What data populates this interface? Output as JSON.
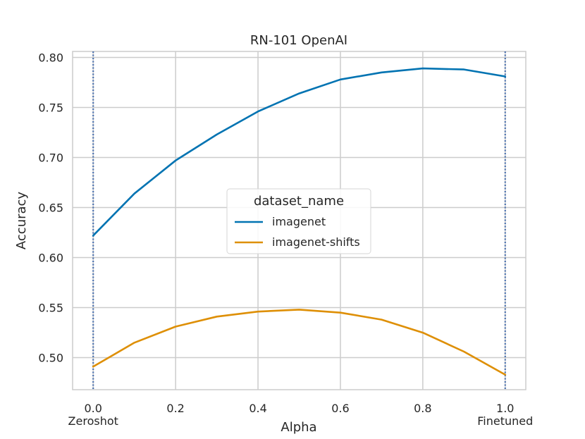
{
  "chart_data": {
    "type": "line",
    "title": "RN-101 OpenAI",
    "xlabel": "Alpha",
    "ylabel": "Accuracy",
    "x": [
      0.0,
      0.1,
      0.2,
      0.3,
      0.4,
      0.5,
      0.6,
      0.7,
      0.8,
      0.9,
      1.0
    ],
    "xlim": [
      -0.05,
      1.05
    ],
    "ylim": [
      0.468,
      0.806
    ],
    "x_ticks": [
      0.0,
      0.2,
      0.4,
      0.6,
      0.8,
      1.0
    ],
    "x_tick_labels": [
      "0.0",
      "0.2",
      "0.4",
      "0.6",
      "0.8",
      "1.0"
    ],
    "y_ticks": [
      0.5,
      0.55,
      0.6,
      0.65,
      0.7,
      0.75,
      0.8
    ],
    "y_tick_labels": [
      "0.50",
      "0.55",
      "0.60",
      "0.65",
      "0.70",
      "0.75",
      "0.80"
    ],
    "series": [
      {
        "name": "imagenet",
        "color": "#0173b2",
        "values": [
          0.622,
          0.664,
          0.697,
          0.723,
          0.746,
          0.764,
          0.778,
          0.785,
          0.789,
          0.788,
          0.781
        ]
      },
      {
        "name": "imagenet-shifts",
        "color": "#de8f05",
        "values": [
          0.491,
          0.515,
          0.531,
          0.541,
          0.546,
          0.548,
          0.545,
          0.538,
          0.525,
          0.506,
          0.483
        ]
      }
    ],
    "vertical_lines": [
      {
        "x": 0.0,
        "label": "Zeroshot",
        "color": "#4c72b0"
      },
      {
        "x": 1.0,
        "label": "Finetuned",
        "color": "#4c72b0"
      }
    ],
    "legend": {
      "title": "dataset_name",
      "placement": "center"
    },
    "grid": true
  }
}
